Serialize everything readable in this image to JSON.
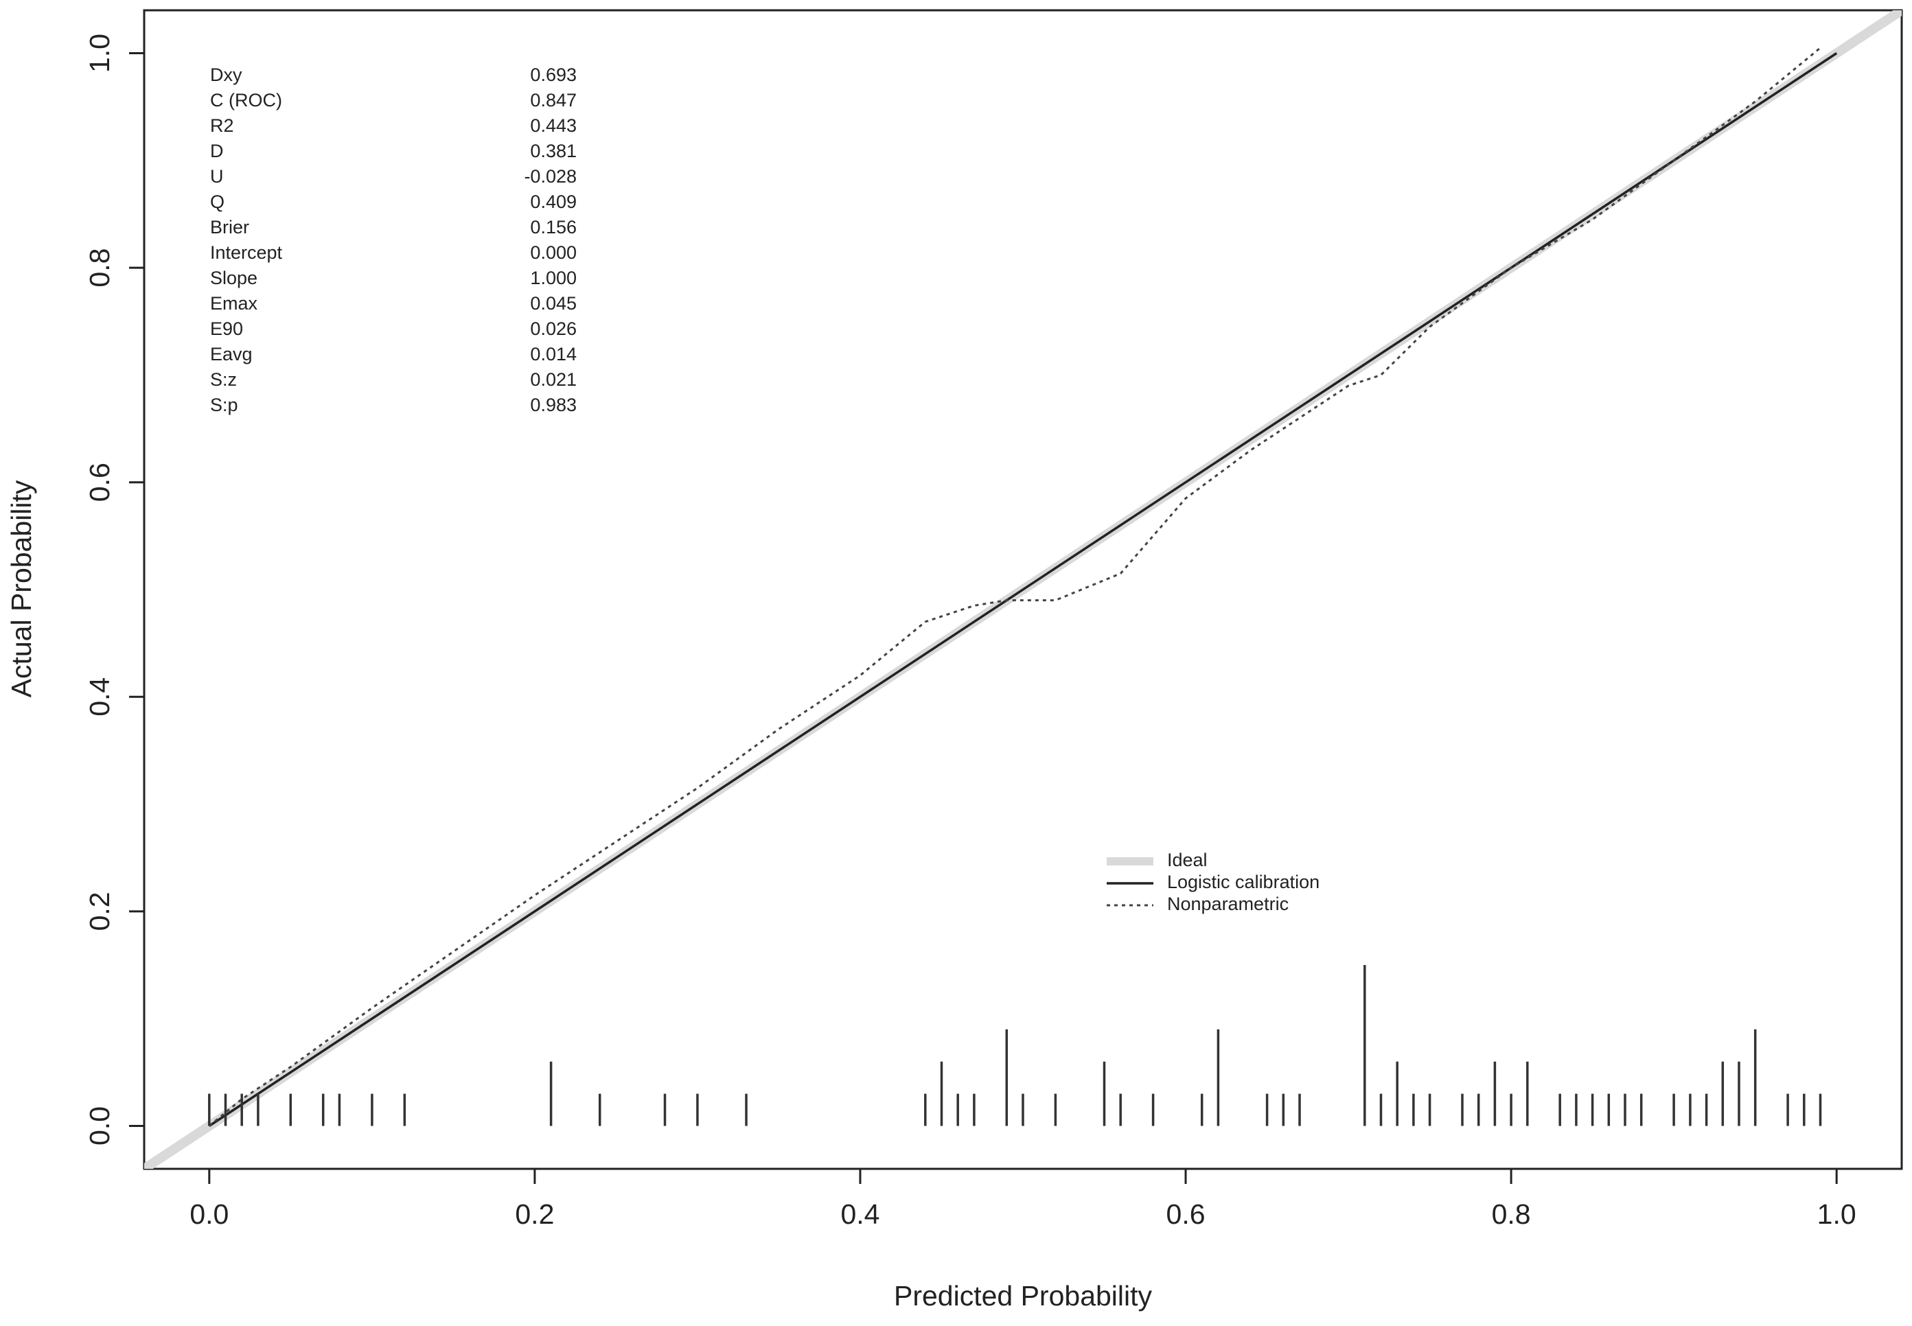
{
  "chart_data": {
    "type": "line",
    "title": "",
    "xlabel": "Predicted Probability",
    "ylabel": "Actual Probability",
    "xlim": [
      -0.04,
      1.04
    ],
    "ylim": [
      -0.04,
      1.04
    ],
    "x_ticks": [
      "0.0",
      "0.2",
      "0.4",
      "0.6",
      "0.8",
      "1.0"
    ],
    "y_ticks": [
      "0.0",
      "0.2",
      "0.4",
      "0.6",
      "0.8",
      "1.0"
    ],
    "grid": false,
    "legend_position": "center-right",
    "stats": [
      {
        "label": "Dxy",
        "value": "0.693"
      },
      {
        "label": "C (ROC)",
        "value": "0.847"
      },
      {
        "label": "R2",
        "value": "0.443"
      },
      {
        "label": "D",
        "value": "0.381"
      },
      {
        "label": "U",
        "value": "-0.028"
      },
      {
        "label": "Q",
        "value": "0.409"
      },
      {
        "label": "Brier",
        "value": "0.156"
      },
      {
        "label": "Intercept",
        "value": "0.000"
      },
      {
        "label": "Slope",
        "value": "1.000"
      },
      {
        "label": "Emax",
        "value": "0.045"
      },
      {
        "label": "E90",
        "value": "0.026"
      },
      {
        "label": "Eavg",
        "value": "0.014"
      },
      {
        "label": "S:z",
        "value": "0.021"
      },
      {
        "label": "S:p",
        "value": "0.983"
      }
    ],
    "series": [
      {
        "name": "Ideal",
        "style": "thick-light",
        "color": "#d9d9d9",
        "x": [
          -0.04,
          1.04
        ],
        "y": [
          -0.04,
          1.04
        ]
      },
      {
        "name": "Logistic calibration",
        "style": "solid",
        "color": "#222222",
        "x": [
          0.0,
          1.0
        ],
        "y": [
          0.0,
          1.0
        ]
      },
      {
        "name": "Nonparametric",
        "style": "dotted",
        "color": "#444444",
        "x": [
          0.0,
          0.02,
          0.05,
          0.1,
          0.2,
          0.3,
          0.35,
          0.4,
          0.44,
          0.47,
          0.49,
          0.52,
          0.56,
          0.6,
          0.64,
          0.67,
          0.7,
          0.72,
          0.75,
          0.8,
          0.85,
          0.9,
          0.95,
          0.99
        ],
        "y": [
          0.0,
          0.025,
          0.055,
          0.11,
          0.215,
          0.315,
          0.37,
          0.42,
          0.47,
          0.485,
          0.49,
          0.49,
          0.515,
          0.585,
          0.63,
          0.66,
          0.69,
          0.7,
          0.745,
          0.8,
          0.845,
          0.9,
          0.955,
          1.005
        ]
      }
    ],
    "rug": [
      {
        "x": 0.0,
        "h": 0.03
      },
      {
        "x": 0.01,
        "h": 0.03
      },
      {
        "x": 0.02,
        "h": 0.03
      },
      {
        "x": 0.03,
        "h": 0.03
      },
      {
        "x": 0.05,
        "h": 0.03
      },
      {
        "x": 0.07,
        "h": 0.03
      },
      {
        "x": 0.08,
        "h": 0.03
      },
      {
        "x": 0.1,
        "h": 0.03
      },
      {
        "x": 0.12,
        "h": 0.03
      },
      {
        "x": 0.21,
        "h": 0.06
      },
      {
        "x": 0.24,
        "h": 0.03
      },
      {
        "x": 0.28,
        "h": 0.03
      },
      {
        "x": 0.3,
        "h": 0.03
      },
      {
        "x": 0.33,
        "h": 0.03
      },
      {
        "x": 0.44,
        "h": 0.03
      },
      {
        "x": 0.45,
        "h": 0.06
      },
      {
        "x": 0.46,
        "h": 0.03
      },
      {
        "x": 0.47,
        "h": 0.03
      },
      {
        "x": 0.49,
        "h": 0.09
      },
      {
        "x": 0.5,
        "h": 0.03
      },
      {
        "x": 0.52,
        "h": 0.03
      },
      {
        "x": 0.55,
        "h": 0.06
      },
      {
        "x": 0.56,
        "h": 0.03
      },
      {
        "x": 0.58,
        "h": 0.03
      },
      {
        "x": 0.61,
        "h": 0.03
      },
      {
        "x": 0.62,
        "h": 0.09
      },
      {
        "x": 0.65,
        "h": 0.03
      },
      {
        "x": 0.66,
        "h": 0.03
      },
      {
        "x": 0.67,
        "h": 0.03
      },
      {
        "x": 0.71,
        "h": 0.15
      },
      {
        "x": 0.72,
        "h": 0.03
      },
      {
        "x": 0.73,
        "h": 0.06
      },
      {
        "x": 0.74,
        "h": 0.03
      },
      {
        "x": 0.75,
        "h": 0.03
      },
      {
        "x": 0.77,
        "h": 0.03
      },
      {
        "x": 0.78,
        "h": 0.03
      },
      {
        "x": 0.79,
        "h": 0.06
      },
      {
        "x": 0.8,
        "h": 0.03
      },
      {
        "x": 0.81,
        "h": 0.06
      },
      {
        "x": 0.83,
        "h": 0.03
      },
      {
        "x": 0.84,
        "h": 0.03
      },
      {
        "x": 0.85,
        "h": 0.03
      },
      {
        "x": 0.86,
        "h": 0.03
      },
      {
        "x": 0.87,
        "h": 0.03
      },
      {
        "x": 0.88,
        "h": 0.03
      },
      {
        "x": 0.9,
        "h": 0.03
      },
      {
        "x": 0.91,
        "h": 0.03
      },
      {
        "x": 0.92,
        "h": 0.03
      },
      {
        "x": 0.93,
        "h": 0.06
      },
      {
        "x": 0.94,
        "h": 0.06
      },
      {
        "x": 0.95,
        "h": 0.09
      },
      {
        "x": 0.97,
        "h": 0.03
      },
      {
        "x": 0.98,
        "h": 0.03
      },
      {
        "x": 0.99,
        "h": 0.03
      }
    ]
  }
}
